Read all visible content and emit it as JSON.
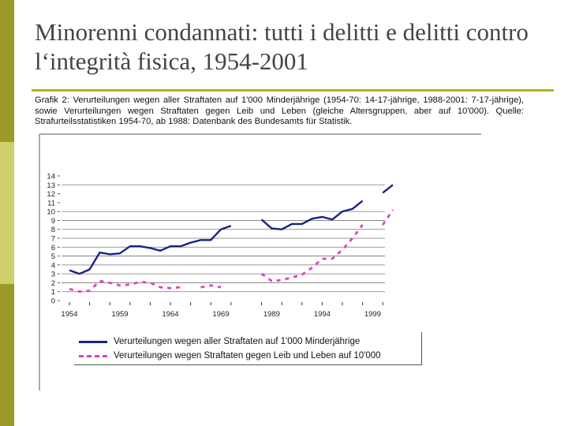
{
  "slide": {
    "title": "Minorenni condannati: tutti i delitti e delitti contro l‘integrità fisica, 1954-2001",
    "caption": "Grafik 2: Verurteilungen wegen aller Straftaten auf 1'000 Minderjährige (1954-70: 14-17-jährige, 1988-2001: 7-17-jährige), sowie Verurteilungen wegen Straftaten gegen Leib und Leben (gleiche Altersgruppen, aber auf 10'000). Quelle: Strafurteilsstatistiken 1954-70, ab 1988: Datenbank des Bundesamts für Statistik."
  },
  "colors": {
    "sidebar_dark": "#9a9a26",
    "sidebar_light": "#cfd06a",
    "title_rule": "#b3b31a",
    "series_all": "#1a237e",
    "series_violent": "#e040c0"
  },
  "chart_data": {
    "type": "line",
    "ylim": [
      0,
      14
    ],
    "yticks": [
      0,
      1,
      2,
      3,
      4,
      5,
      6,
      7,
      8,
      9,
      10,
      11,
      12,
      13,
      14
    ],
    "xtick_labels": [
      "1954",
      "1959",
      "1964",
      "1969",
      "1989",
      "1994",
      "1999"
    ],
    "grid": "horizontal",
    "legend_position": "bottom",
    "series": [
      {
        "name": "Verurteilungen wegen aller Straftaten auf 1'000 Minderjährige",
        "style": "solid",
        "segments": [
          {
            "x": [
              "1954",
              "1955",
              "1956",
              "1957",
              "1958",
              "1959",
              "1960",
              "1961",
              "1962",
              "1963",
              "1964",
              "1965",
              "1966",
              "1967",
              "1968",
              "1969",
              "1970"
            ],
            "y": [
              3.4,
              3.0,
              3.5,
              5.4,
              5.2,
              5.3,
              6.1,
              6.1,
              5.9,
              5.6,
              6.1,
              6.1,
              6.5,
              6.8,
              6.8,
              8.0,
              8.4
            ]
          },
          {
            "x": [
              "1988",
              "1989",
              "1990",
              "1991",
              "1992",
              "1993",
              "1994",
              "1995",
              "1996",
              "1997",
              "1998"
            ],
            "y": [
              9.1,
              8.1,
              8.0,
              8.6,
              8.6,
              9.2,
              9.4,
              9.1,
              10.0,
              10.3,
              11.2
            ]
          },
          {
            "x": [
              "2000",
              "2001"
            ],
            "y": [
              12.1,
              13.0
            ]
          }
        ]
      },
      {
        "name": "Verurteilungen wegen Straftaten gegen Leib und Leben auf 10'000",
        "style": "dashed",
        "segments": [
          {
            "x": [
              "1954",
              "1955",
              "1956",
              "1957",
              "1958",
              "1959",
              "1960",
              "1961",
              "1962",
              "1963",
              "1964",
              "1965"
            ],
            "y": [
              1.3,
              1.0,
              1.1,
              2.2,
              2.0,
              1.7,
              1.8,
              2.1,
              2.0,
              1.5,
              1.4,
              1.5
            ]
          },
          {
            "x": [
              "1967",
              "1968",
              "1969"
            ],
            "y": [
              1.5,
              1.7,
              1.5
            ]
          },
          {
            "x": [
              "1988",
              "1989",
              "1990",
              "1991",
              "1992",
              "1993",
              "1994",
              "1995",
              "1996",
              "1997",
              "1998"
            ],
            "y": [
              3.0,
              2.2,
              2.3,
              2.6,
              2.9,
              3.7,
              4.7,
              4.7,
              5.7,
              7.0,
              8.5
            ]
          },
          {
            "x": [
              "2000",
              "2001"
            ],
            "y": [
              8.5,
              10.2
            ]
          }
        ]
      }
    ]
  }
}
